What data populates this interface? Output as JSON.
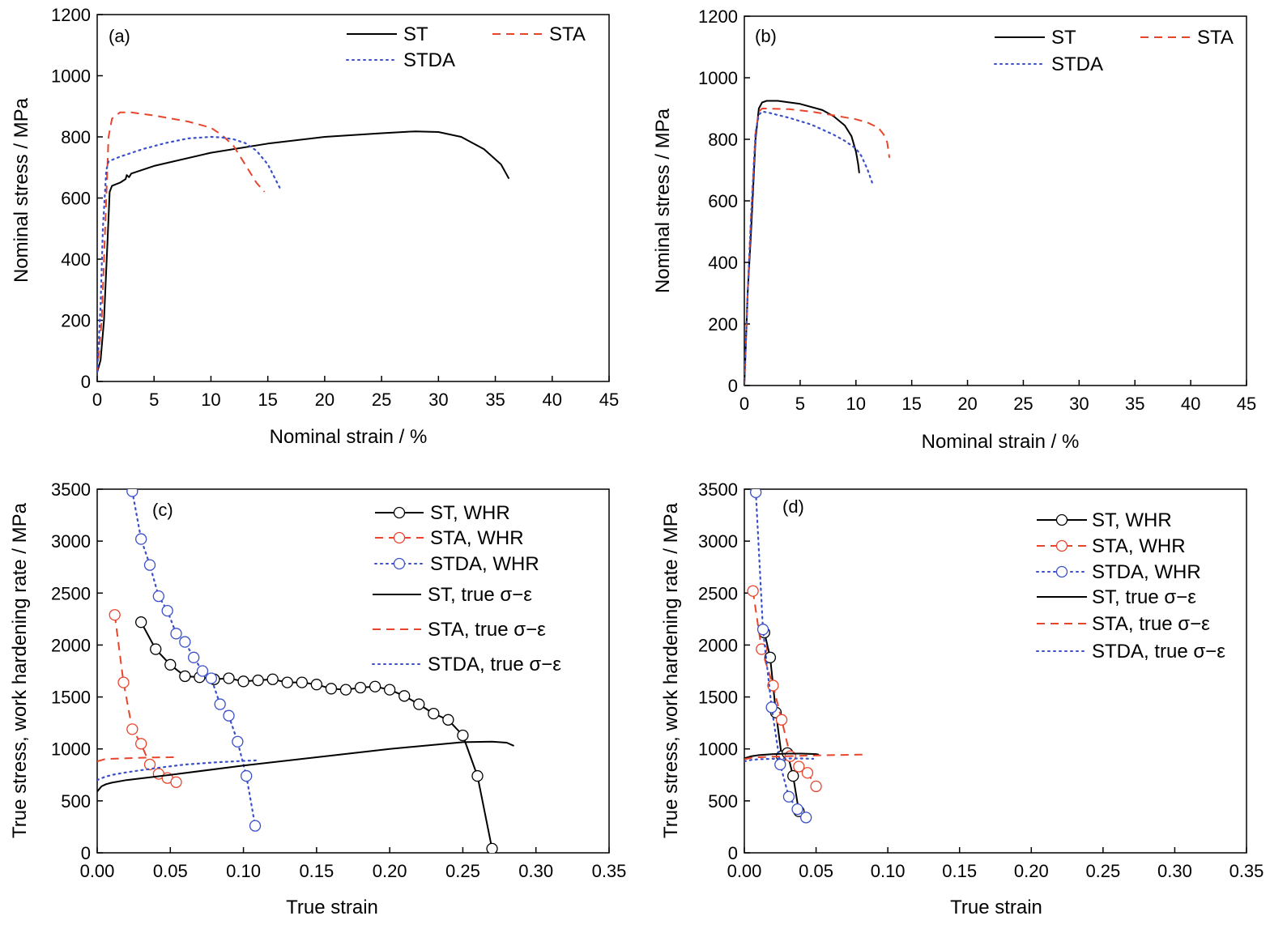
{
  "chart_data": [
    {
      "id": "a",
      "type": "line",
      "panel_label": "(a)",
      "xlabel": "Nominal strain / %",
      "ylabel": "Nominal stress / MPa",
      "xlim": [
        0,
        45
      ],
      "ylim": [
        0,
        1200
      ],
      "xticks": [
        0,
        5,
        10,
        15,
        20,
        25,
        30,
        35,
        40,
        45
      ],
      "yticks": [
        0,
        200,
        400,
        600,
        800,
        1000,
        1200
      ],
      "xtick_labels": [
        "0",
        "5",
        "10",
        "15",
        "20",
        "25",
        "30",
        "35",
        "40",
        "45"
      ],
      "ytick_labels": [
        "0",
        "200",
        "400",
        "600",
        "800",
        "1000",
        "1200"
      ],
      "legend": [
        {
          "label": "ST",
          "style": "solid",
          "color": "#000000"
        },
        {
          "label": "STA",
          "style": "dashed",
          "color": "#e8452c"
        },
        {
          "label": "STDA",
          "style": "dotted",
          "color": "#3a4fc9"
        }
      ],
      "series": [
        {
          "name": "ST",
          "style": "solid",
          "color": "#000000",
          "x": [
            0,
            0.3,
            0.6,
            0.9,
            1.1,
            1.3,
            2,
            2.5,
            2.6,
            2.8,
            3,
            5,
            10,
            15,
            20,
            25,
            28,
            30,
            32,
            34,
            35.5,
            36.2
          ],
          "y": [
            30,
            70,
            200,
            450,
            620,
            640,
            650,
            662,
            675,
            668,
            680,
            705,
            748,
            778,
            800,
            812,
            818,
            816,
            800,
            760,
            710,
            663
          ]
        },
        {
          "name": "STA",
          "style": "dashed",
          "color": "#e8452c",
          "x": [
            0,
            0.4,
            0.7,
            1,
            1.3,
            2,
            3,
            5,
            8,
            10,
            11,
            12,
            13,
            14,
            14.7
          ],
          "y": [
            30,
            200,
            500,
            800,
            860,
            880,
            880,
            870,
            850,
            830,
            805,
            770,
            710,
            650,
            620
          ]
        },
        {
          "name": "STDA",
          "style": "dotted",
          "color": "#3a4fc9",
          "x": [
            0,
            0.3,
            0.5,
            0.8,
            1,
            2,
            4,
            6,
            8,
            10,
            11,
            12,
            13,
            14,
            15,
            16.1
          ],
          "y": [
            30,
            250,
            500,
            690,
            720,
            735,
            760,
            780,
            795,
            800,
            798,
            792,
            780,
            755,
            710,
            630
          ]
        }
      ]
    },
    {
      "id": "b",
      "type": "line",
      "panel_label": "(b)",
      "xlabel": "Nominal strain / %",
      "ylabel": "Nominal stress / MPa",
      "xlim": [
        0,
        45
      ],
      "ylim": [
        0,
        1200
      ],
      "xticks": [
        0,
        5,
        10,
        15,
        20,
        25,
        30,
        35,
        40,
        45
      ],
      "yticks": [
        0,
        200,
        400,
        600,
        800,
        1000,
        1200
      ],
      "xtick_labels": [
        "0",
        "5",
        "10",
        "15",
        "20",
        "25",
        "30",
        "35",
        "40",
        "45"
      ],
      "ytick_labels": [
        "0",
        "200",
        "400",
        "600",
        "800",
        "1000",
        "1200"
      ],
      "legend": [
        {
          "label": "ST",
          "style": "solid",
          "color": "#000000"
        },
        {
          "label": "STA",
          "style": "dashed",
          "color": "#e8452c"
        },
        {
          "label": "STDA",
          "style": "dotted",
          "color": "#3a4fc9"
        }
      ],
      "series": [
        {
          "name": "ST",
          "style": "solid",
          "color": "#000000",
          "x": [
            0,
            0.3,
            0.6,
            1,
            1.3,
            1.6,
            2,
            3,
            5,
            7,
            8,
            9,
            9.6,
            10,
            10.2,
            10.3
          ],
          "y": [
            0,
            300,
            500,
            800,
            900,
            920,
            925,
            925,
            915,
            895,
            875,
            845,
            810,
            760,
            720,
            690
          ]
        },
        {
          "name": "STA",
          "style": "dashed",
          "color": "#e8452c",
          "x": [
            0,
            0.3,
            0.6,
            1,
            1.3,
            1.6,
            2,
            4,
            6,
            8,
            10,
            11,
            12,
            12.5,
            12.8,
            13
          ],
          "y": [
            0,
            300,
            550,
            820,
            890,
            900,
            900,
            898,
            890,
            878,
            865,
            855,
            838,
            815,
            790,
            740
          ]
        },
        {
          "name": "STDA",
          "style": "dotted",
          "color": "#3a4fc9",
          "x": [
            0,
            0.3,
            0.6,
            1,
            1.3,
            1.6,
            2,
            4,
            6,
            8,
            9,
            10,
            10.5,
            11,
            11.5
          ],
          "y": [
            0,
            300,
            550,
            820,
            880,
            890,
            888,
            870,
            848,
            815,
            795,
            770,
            745,
            705,
            655
          ]
        }
      ]
    },
    {
      "id": "c",
      "type": "line",
      "panel_label": "(c)",
      "xlabel": "True strain",
      "ylabel": "True stress, work hardening rate / MPa",
      "xlim": [
        0,
        0.35
      ],
      "ylim": [
        0,
        3500
      ],
      "xticks": [
        0,
        0.05,
        0.1,
        0.15,
        0.2,
        0.25,
        0.3,
        0.35
      ],
      "yticks": [
        0,
        500,
        1000,
        1500,
        2000,
        2500,
        3000,
        3500
      ],
      "xtick_labels": [
        "0.00",
        "0.05",
        "0.10",
        "0.15",
        "0.20",
        "0.25",
        "0.30",
        "0.35"
      ],
      "ytick_labels": [
        "0",
        "500",
        "1000",
        "1500",
        "2000",
        "2500",
        "3000",
        "3500"
      ],
      "legend": [
        {
          "label": "ST, WHR",
          "style": "solid",
          "marker": true,
          "color": "#000000"
        },
        {
          "label": "STA, WHR",
          "style": "dashed",
          "marker": true,
          "color": "#e8452c"
        },
        {
          "label": "STDA, WHR",
          "style": "dotted",
          "marker": true,
          "color": "#3a4fc9"
        },
        {
          "label": "ST, true σ−ε",
          "style": "solid",
          "marker": false,
          "color": "#000000"
        },
        {
          "label": "STA, true σ−ε",
          "style": "dashed",
          "marker": false,
          "color": "#e8452c"
        },
        {
          "label": "STDA, true σ−ε",
          "style": "dotted",
          "marker": false,
          "color": "#3a4fc9"
        }
      ],
      "series": [
        {
          "name": "ST, WHR",
          "style": "solid",
          "marker": true,
          "color": "#000000",
          "x": [
            0.03,
            0.04,
            0.05,
            0.06,
            0.07,
            0.08,
            0.09,
            0.1,
            0.11,
            0.12,
            0.13,
            0.14,
            0.15,
            0.16,
            0.17,
            0.18,
            0.19,
            0.2,
            0.21,
            0.22,
            0.23,
            0.24,
            0.25,
            0.26,
            0.27
          ],
          "y": [
            2220,
            1960,
            1810,
            1700,
            1690,
            1670,
            1680,
            1650,
            1660,
            1670,
            1640,
            1640,
            1620,
            1580,
            1570,
            1590,
            1600,
            1570,
            1510,
            1430,
            1340,
            1280,
            1130,
            740,
            40
          ]
        },
        {
          "name": "STA, WHR",
          "style": "dashed",
          "marker": true,
          "color": "#e8452c",
          "x": [
            0.012,
            0.018,
            0.024,
            0.03,
            0.036,
            0.042,
            0.048,
            0.054
          ],
          "y": [
            2290,
            1640,
            1190,
            1050,
            850,
            760,
            720,
            680
          ]
        },
        {
          "name": "STDA, WHR",
          "style": "dotted",
          "marker": true,
          "color": "#3a4fc9",
          "x": [
            0.024,
            0.03,
            0.036,
            0.042,
            0.048,
            0.054,
            0.06,
            0.066,
            0.072,
            0.078,
            0.084,
            0.09,
            0.096,
            0.102,
            0.108
          ],
          "y": [
            3480,
            3020,
            2770,
            2470,
            2330,
            2110,
            2030,
            1880,
            1750,
            1680,
            1430,
            1320,
            1070,
            740,
            260
          ]
        },
        {
          "name": "ST, true σ−ε",
          "style": "solid",
          "marker": false,
          "color": "#000000",
          "x": [
            0,
            0.003,
            0.006,
            0.01,
            0.02,
            0.05,
            0.1,
            0.15,
            0.2,
            0.25,
            0.27,
            0.28,
            0.285
          ],
          "y": [
            590,
            640,
            660,
            675,
            700,
            750,
            840,
            920,
            1000,
            1065,
            1070,
            1060,
            1030
          ]
        },
        {
          "name": "STA, true σ−ε",
          "style": "dashed",
          "marker": false,
          "color": "#e8452c",
          "x": [
            0,
            0.005,
            0.01,
            0.02,
            0.03,
            0.04,
            0.05,
            0.055
          ],
          "y": [
            880,
            900,
            905,
            910,
            915,
            918,
            920,
            922
          ]
        },
        {
          "name": "STDA, true σ−ε",
          "style": "dotted",
          "marker": false,
          "color": "#3a4fc9",
          "x": [
            0,
            0.005,
            0.01,
            0.02,
            0.04,
            0.06,
            0.08,
            0.1,
            0.11
          ],
          "y": [
            700,
            730,
            750,
            775,
            815,
            850,
            870,
            885,
            890
          ]
        }
      ]
    },
    {
      "id": "d",
      "type": "line",
      "panel_label": "(d)",
      "xlabel": "True strain",
      "ylabel": "True stress, work hardening rate / MPa",
      "xlim": [
        0,
        0.35
      ],
      "ylim": [
        0,
        3500
      ],
      "xticks": [
        0,
        0.05,
        0.1,
        0.15,
        0.2,
        0.25,
        0.3,
        0.35
      ],
      "yticks": [
        0,
        500,
        1000,
        1500,
        2000,
        2500,
        3000,
        3500
      ],
      "xtick_labels": [
        "0.00",
        "0.05",
        "0.10",
        "0.15",
        "0.20",
        "0.25",
        "0.30",
        "0.35"
      ],
      "ytick_labels": [
        "0",
        "500",
        "1000",
        "1500",
        "2000",
        "2500",
        "3000",
        "3500"
      ],
      "legend": [
        {
          "label": "ST, WHR",
          "style": "solid",
          "marker": true,
          "color": "#000000"
        },
        {
          "label": "STA, WHR",
          "style": "dashed",
          "marker": true,
          "color": "#e8452c"
        },
        {
          "label": "STDA, WHR",
          "style": "dotted",
          "marker": true,
          "color": "#3a4fc9"
        },
        {
          "label": "ST, true σ−ε",
          "style": "solid",
          "marker": false,
          "color": "#000000"
        },
        {
          "label": "STA, true σ−ε",
          "style": "dashed",
          "marker": false,
          "color": "#e8452c"
        },
        {
          "label": "STDA, true σ−ε",
          "style": "dotted",
          "marker": false,
          "color": "#3a4fc9"
        }
      ],
      "series": [
        {
          "name": "ST, WHR",
          "style": "solid",
          "marker": true,
          "color": "#000000",
          "x": [
            0.014,
            0.018,
            0.022,
            0.026,
            0.03,
            0.034,
            0.038
          ],
          "y": [
            2120,
            1880,
            1350,
            930,
            960,
            740,
            400
          ]
        },
        {
          "name": "STA, WHR",
          "style": "dashed",
          "marker": true,
          "color": "#e8452c",
          "x": [
            0.006,
            0.012,
            0.02,
            0.026,
            0.032,
            0.038,
            0.044,
            0.05
          ],
          "y": [
            2520,
            1960,
            1610,
            1280,
            930,
            830,
            770,
            640
          ]
        },
        {
          "name": "STDA, WHR",
          "style": "dotted",
          "marker": true,
          "color": "#3a4fc9",
          "x": [
            0.008,
            0.013,
            0.019,
            0.025,
            0.031,
            0.037,
            0.043
          ],
          "y": [
            3470,
            2150,
            1400,
            850,
            540,
            420,
            340
          ]
        },
        {
          "name": "ST, true σ−ε",
          "style": "solid",
          "marker": false,
          "color": "#000000",
          "x": [
            0,
            0.005,
            0.01,
            0.02,
            0.03,
            0.04,
            0.05,
            0.052
          ],
          "y": [
            910,
            930,
            940,
            950,
            955,
            955,
            950,
            945
          ]
        },
        {
          "name": "STA, true σ−ε",
          "style": "dashed",
          "marker": false,
          "color": "#e8452c",
          "x": [
            0,
            0.005,
            0.01,
            0.02,
            0.04,
            0.06,
            0.08,
            0.083
          ],
          "y": [
            900,
            915,
            920,
            925,
            935,
            940,
            945,
            945
          ]
        },
        {
          "name": "STDA, true σ−ε",
          "style": "dotted",
          "marker": false,
          "color": "#3a4fc9",
          "x": [
            0,
            0.005,
            0.01,
            0.02,
            0.03,
            0.04,
            0.048
          ],
          "y": [
            880,
            895,
            900,
            905,
            908,
            908,
            905
          ]
        }
      ]
    }
  ]
}
